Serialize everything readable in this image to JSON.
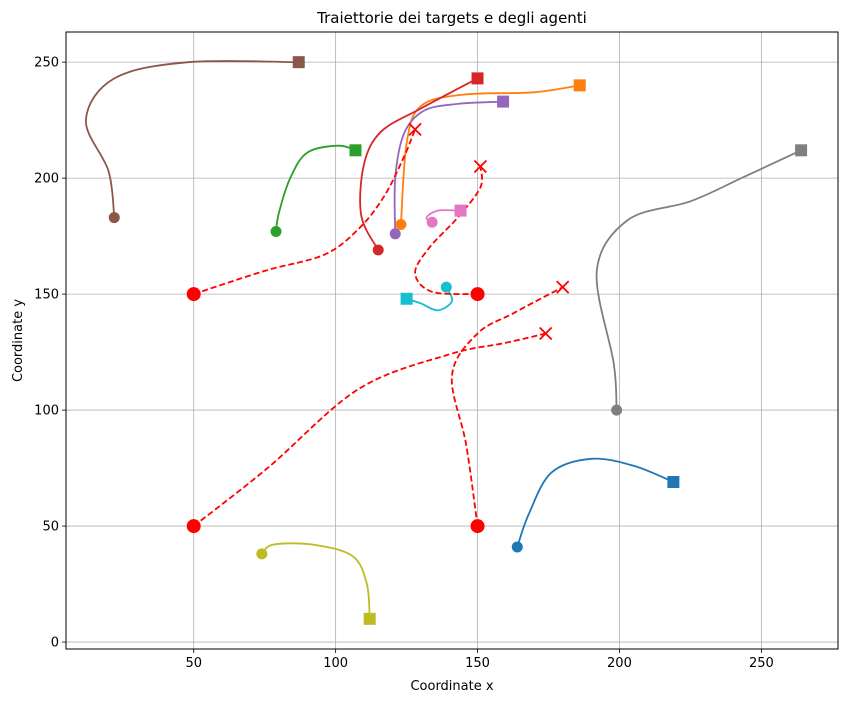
{
  "chart_data": {
    "type": "line",
    "title": "Traiettorie dei targets e degli agenti",
    "xlabel": "Coordinate x",
    "ylabel": "Coordinate y",
    "xlim": [
      5,
      277
    ],
    "ylim": [
      -3,
      263
    ],
    "xticks": [
      50,
      100,
      150,
      200,
      250
    ],
    "yticks": [
      0,
      50,
      100,
      150,
      200,
      250
    ],
    "grid": true,
    "agent_paths": [
      {
        "color": "#ff0000",
        "start": [
          50,
          150
        ],
        "end": [
          128,
          221
        ],
        "points": [
          [
            50,
            150
          ],
          [
            75,
            160
          ],
          [
            96,
            167
          ],
          [
            108,
            178
          ],
          [
            117,
            192
          ],
          [
            124,
            209
          ],
          [
            128,
            221
          ]
        ]
      },
      {
        "color": "#ff0000",
        "start": [
          150,
          150
        ],
        "end": [
          151,
          205
        ],
        "points": [
          [
            150,
            150
          ],
          [
            134,
            151
          ],
          [
            128,
            159
          ],
          [
            133,
            170
          ],
          [
            143,
            183
          ],
          [
            151,
            196
          ],
          [
            151,
            205
          ]
        ]
      },
      {
        "color": "#ff0000",
        "start": [
          50,
          50
        ],
        "end": [
          174,
          133
        ],
        "points": [
          [
            50,
            50
          ],
          [
            76,
            75
          ],
          [
            108,
            109
          ],
          [
            140,
            124
          ],
          [
            160,
            129
          ],
          [
            174,
            133
          ]
        ]
      },
      {
        "color": "#ff0000",
        "start": [
          150,
          50
        ],
        "end": [
          180,
          153
        ],
        "points": [
          [
            150,
            50
          ],
          [
            146,
            85
          ],
          [
            141,
            115
          ],
          [
            150,
            133
          ],
          [
            163,
            142
          ],
          [
            180,
            153
          ]
        ]
      }
    ],
    "target_paths": [
      {
        "color": "#1f77b4",
        "start": [
          164,
          41
        ],
        "end": [
          219,
          69
        ],
        "points": [
          [
            164,
            41
          ],
          [
            168,
            55
          ],
          [
            176,
            73
          ],
          [
            190,
            79
          ],
          [
            205,
            76
          ],
          [
            219,
            69
          ]
        ]
      },
      {
        "color": "#ff7f0e",
        "start": [
          123,
          180
        ],
        "end": [
          186,
          240
        ],
        "points": [
          [
            123,
            180
          ],
          [
            125,
            215
          ],
          [
            130,
            231
          ],
          [
            145,
            236
          ],
          [
            170,
            237
          ],
          [
            186,
            240
          ]
        ]
      },
      {
        "color": "#2ca02c",
        "start": [
          79,
          177
        ],
        "end": [
          107,
          212
        ],
        "points": [
          [
            79,
            177
          ],
          [
            80,
            185
          ],
          [
            84,
            200
          ],
          [
            90,
            211
          ],
          [
            101,
            214
          ],
          [
            107,
            212
          ]
        ]
      },
      {
        "color": "#d62728",
        "start": [
          115,
          169
        ],
        "end": [
          150,
          243
        ],
        "points": [
          [
            115,
            169
          ],
          [
            109,
            184
          ],
          [
            110,
            206
          ],
          [
            116,
            220
          ],
          [
            130,
            230
          ],
          [
            150,
            243
          ]
        ]
      },
      {
        "color": "#9467bd",
        "start": [
          121,
          176
        ],
        "end": [
          159,
          233
        ],
        "points": [
          [
            121,
            176
          ],
          [
            121,
            200
          ],
          [
            124,
            219
          ],
          [
            131,
            229
          ],
          [
            143,
            232
          ],
          [
            159,
            233
          ]
        ]
      },
      {
        "color": "#8c564b",
        "start": [
          22,
          183
        ],
        "end": [
          87,
          250
        ],
        "points": [
          [
            22,
            183
          ],
          [
            20,
            203
          ],
          [
            12,
            225
          ],
          [
            22,
            243
          ],
          [
            48,
            250
          ],
          [
            87,
            250
          ]
        ]
      },
      {
        "color": "#e377c2",
        "start": [
          134,
          181
        ],
        "end": [
          144,
          186
        ],
        "points": [
          [
            134,
            181
          ],
          [
            132,
            183
          ],
          [
            136,
            186
          ],
          [
            144,
            186
          ]
        ]
      },
      {
        "color": "#7f7f7f",
        "start": [
          199,
          100
        ],
        "end": [
          264,
          212
        ],
        "points": [
          [
            199,
            100
          ],
          [
            198,
            120
          ],
          [
            192,
            160
          ],
          [
            203,
            182
          ],
          [
            225,
            190
          ],
          [
            243,
            200
          ],
          [
            264,
            212
          ]
        ]
      },
      {
        "color": "#bcbd22",
        "start": [
          74,
          38
        ],
        "end": [
          112,
          10
        ],
        "points": [
          [
            74,
            38
          ],
          [
            78,
            42
          ],
          [
            92,
            42
          ],
          [
            106,
            37
          ],
          [
            111,
            25
          ],
          [
            112,
            10
          ]
        ]
      },
      {
        "color": "#17becf",
        "start": [
          139,
          153
        ],
        "end": [
          125,
          148
        ],
        "points": [
          [
            139,
            153
          ],
          [
            141,
            147
          ],
          [
            136,
            143
          ],
          [
            130,
            146
          ],
          [
            125,
            148
          ]
        ]
      }
    ]
  }
}
